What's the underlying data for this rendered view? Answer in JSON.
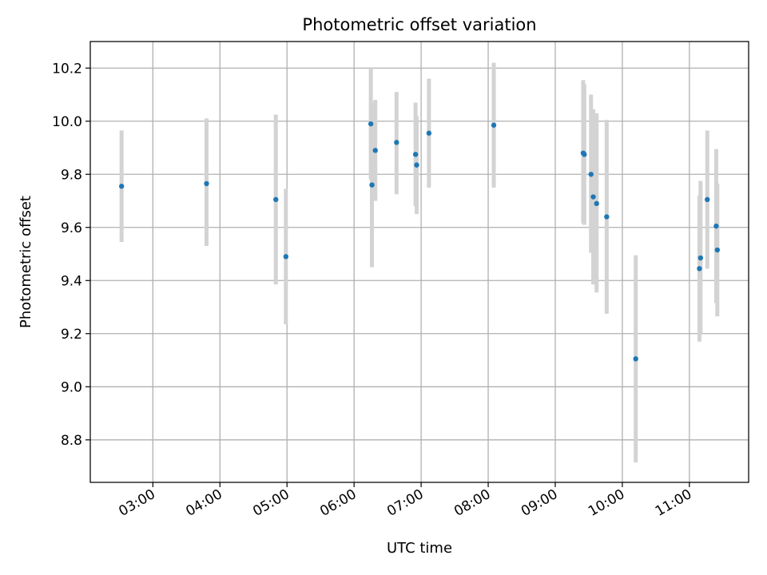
{
  "chart_data": {
    "type": "scatter",
    "title": "Photometric offset variation",
    "xlabel": "UTC time",
    "ylabel": "Photometric offset",
    "x_unit": "UTC time (HH:MM)",
    "xlim": [
      "02:04",
      "11:53"
    ],
    "ylim": [
      8.64,
      10.3
    ],
    "x_ticks": [
      "03:00",
      "04:00",
      "05:00",
      "06:00",
      "07:00",
      "08:00",
      "09:00",
      "10:00",
      "11:00"
    ],
    "y_ticks": [
      "8.8",
      "9.0",
      "9.2",
      "9.4",
      "9.6",
      "9.8",
      "10.0",
      "10.2"
    ],
    "grid": true,
    "legend": "none",
    "colors": {
      "point": "#1f77b4",
      "errorbar": "#d3d3d3",
      "grid": "#b0b0b0"
    },
    "points": [
      {
        "x": "02:32",
        "y": 9.755,
        "yerr": [
          9.545,
          9.965
        ]
      },
      {
        "x": "03:48",
        "y": 9.765,
        "yerr": [
          9.53,
          10.01
        ]
      },
      {
        "x": "04:50",
        "y": 9.705,
        "yerr": [
          9.385,
          10.025
        ]
      },
      {
        "x": "04:59",
        "y": 9.49,
        "yerr": [
          9.235,
          9.745
        ]
      },
      {
        "x": "06:15",
        "y": 9.99,
        "yerr": [
          9.78,
          10.2
        ]
      },
      {
        "x": "06:16",
        "y": 9.76,
        "yerr": [
          9.45,
          10.07
        ]
      },
      {
        "x": "06:19",
        "y": 9.89,
        "yerr": [
          9.7,
          10.08
        ]
      },
      {
        "x": "06:38",
        "y": 9.92,
        "yerr": [
          9.725,
          10.11
        ]
      },
      {
        "x": "06:55",
        "y": 9.875,
        "yerr": [
          9.68,
          10.07
        ]
      },
      {
        "x": "06:56",
        "y": 9.835,
        "yerr": [
          9.65,
          10.02
        ]
      },
      {
        "x": "07:07",
        "y": 9.955,
        "yerr": [
          9.75,
          10.16
        ]
      },
      {
        "x": "08:05",
        "y": 9.985,
        "yerr": [
          9.75,
          10.22
        ]
      },
      {
        "x": "09:25",
        "y": 9.88,
        "yerr": [
          9.615,
          10.155
        ]
      },
      {
        "x": "09:26",
        "y": 9.875,
        "yerr": [
          9.61,
          10.14
        ]
      },
      {
        "x": "09:32",
        "y": 9.8,
        "yerr": [
          9.505,
          10.1
        ]
      },
      {
        "x": "09:34",
        "y": 9.715,
        "yerr": [
          9.385,
          10.045
        ]
      },
      {
        "x": "09:37",
        "y": 9.69,
        "yerr": [
          9.355,
          10.03
        ]
      },
      {
        "x": "09:46",
        "y": 9.64,
        "yerr": [
          9.275,
          10.005
        ]
      },
      {
        "x": "10:12",
        "y": 9.105,
        "yerr": [
          8.715,
          9.495
        ]
      },
      {
        "x": "11:09",
        "y": 9.445,
        "yerr": [
          9.17,
          9.72
        ]
      },
      {
        "x": "11:10",
        "y": 9.485,
        "yerr": [
          9.2,
          9.775
        ]
      },
      {
        "x": "11:16",
        "y": 9.705,
        "yerr": [
          9.445,
          9.965
        ]
      },
      {
        "x": "11:24",
        "y": 9.605,
        "yerr": [
          9.315,
          9.895
        ]
      },
      {
        "x": "11:25",
        "y": 9.515,
        "yerr": [
          9.265,
          9.765
        ]
      }
    ]
  }
}
